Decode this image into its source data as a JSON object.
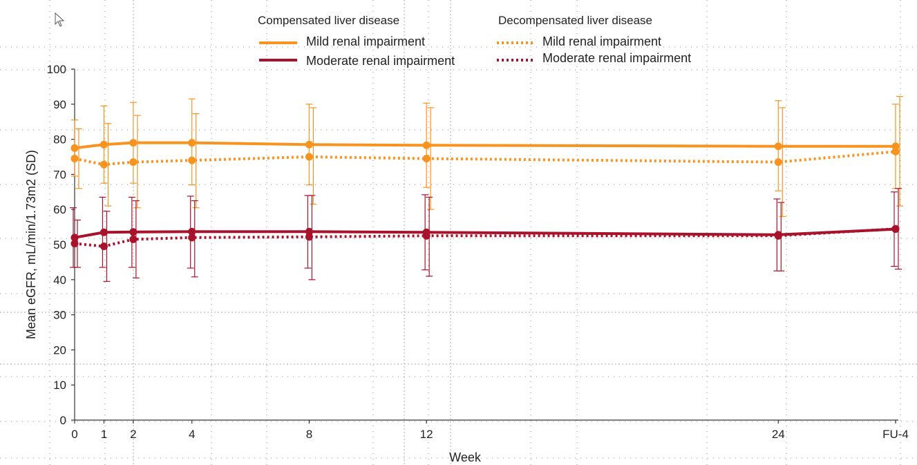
{
  "colors": {
    "mild": "#f7931e",
    "moderate": "#a8122a",
    "grid": "#888888",
    "axis": "#333333"
  },
  "legend": {
    "group_compensated": "Compensated liver disease",
    "group_decompensated": "Decompensated liver disease",
    "items": [
      {
        "label": "Mild renal impairment",
        "group": "compensated"
      },
      {
        "label": "Moderate renal impairment",
        "group": "compensated"
      },
      {
        "label": "Mild renal impairment",
        "group": "decompensated"
      },
      {
        "label": "Moderate renal impairment",
        "group": "decompensated"
      }
    ]
  },
  "chart_data": {
    "type": "line",
    "title": "",
    "xlabel": "Week",
    "ylabel": "Mean eGFR, mL/min/1.73m2 (SD)",
    "ylim": [
      0,
      100
    ],
    "yticks": [
      0,
      10,
      20,
      30,
      40,
      50,
      60,
      70,
      80,
      90,
      100
    ],
    "x": [
      "0",
      "1",
      "2",
      "4",
      "8",
      "12",
      "24",
      "FU-4"
    ],
    "x_positions": [
      0,
      1,
      2,
      4,
      8,
      12,
      24,
      28
    ],
    "grid": true,
    "legend_position": "top",
    "series": [
      {
        "name": "Mild renal impairment",
        "group": "Compensated liver disease",
        "style": "solid",
        "color": "#f7931e",
        "values": [
          77.5,
          78.5,
          79.0,
          79.0,
          78.5,
          78.3,
          78.0,
          78.0
        ],
        "sd_low": [
          69.5,
          67.5,
          67.5,
          67.0,
          67.0,
          66.3,
          65.3,
          66.0
        ],
        "sd_high": [
          85.5,
          89.5,
          90.5,
          91.5,
          90.0,
          90.3,
          91.0,
          90.0
        ]
      },
      {
        "name": "Mild renal impairment",
        "group": "Decompensated liver disease",
        "style": "dotted",
        "color": "#f7931e",
        "values": [
          74.5,
          72.8,
          73.5,
          74.0,
          75.0,
          74.5,
          73.5,
          76.5
        ],
        "sd_low": [
          66.0,
          61.0,
          60.5,
          60.5,
          61.5,
          60.0,
          58.0,
          61.0
        ],
        "sd_high": [
          83.0,
          84.5,
          86.8,
          87.3,
          89.0,
          89.0,
          89.0,
          92.2
        ]
      },
      {
        "name": "Moderate renal impairment",
        "group": "Compensated liver disease",
        "style": "solid",
        "color": "#a8122a",
        "values": [
          52.0,
          53.5,
          53.6,
          53.7,
          53.7,
          53.5,
          52.8,
          54.4
        ],
        "sd_low": [
          43.5,
          43.5,
          43.5,
          43.3,
          43.3,
          42.8,
          42.5,
          43.8
        ],
        "sd_high": [
          60.5,
          63.5,
          63.5,
          63.8,
          64.0,
          64.2,
          63.0,
          65.0
        ]
      },
      {
        "name": "Moderate renal impairment",
        "group": "Decompensated liver disease",
        "style": "dotted",
        "color": "#a8122a",
        "values": [
          50.3,
          49.5,
          51.5,
          52.0,
          52.2,
          52.5,
          52.5,
          54.5
        ],
        "sd_low": [
          43.5,
          39.5,
          40.5,
          40.8,
          40.0,
          41.0,
          42.5,
          43.0
        ],
        "sd_high": [
          57.0,
          59.5,
          62.5,
          62.5,
          64.0,
          63.5,
          62.0,
          66.0
        ]
      }
    ]
  }
}
